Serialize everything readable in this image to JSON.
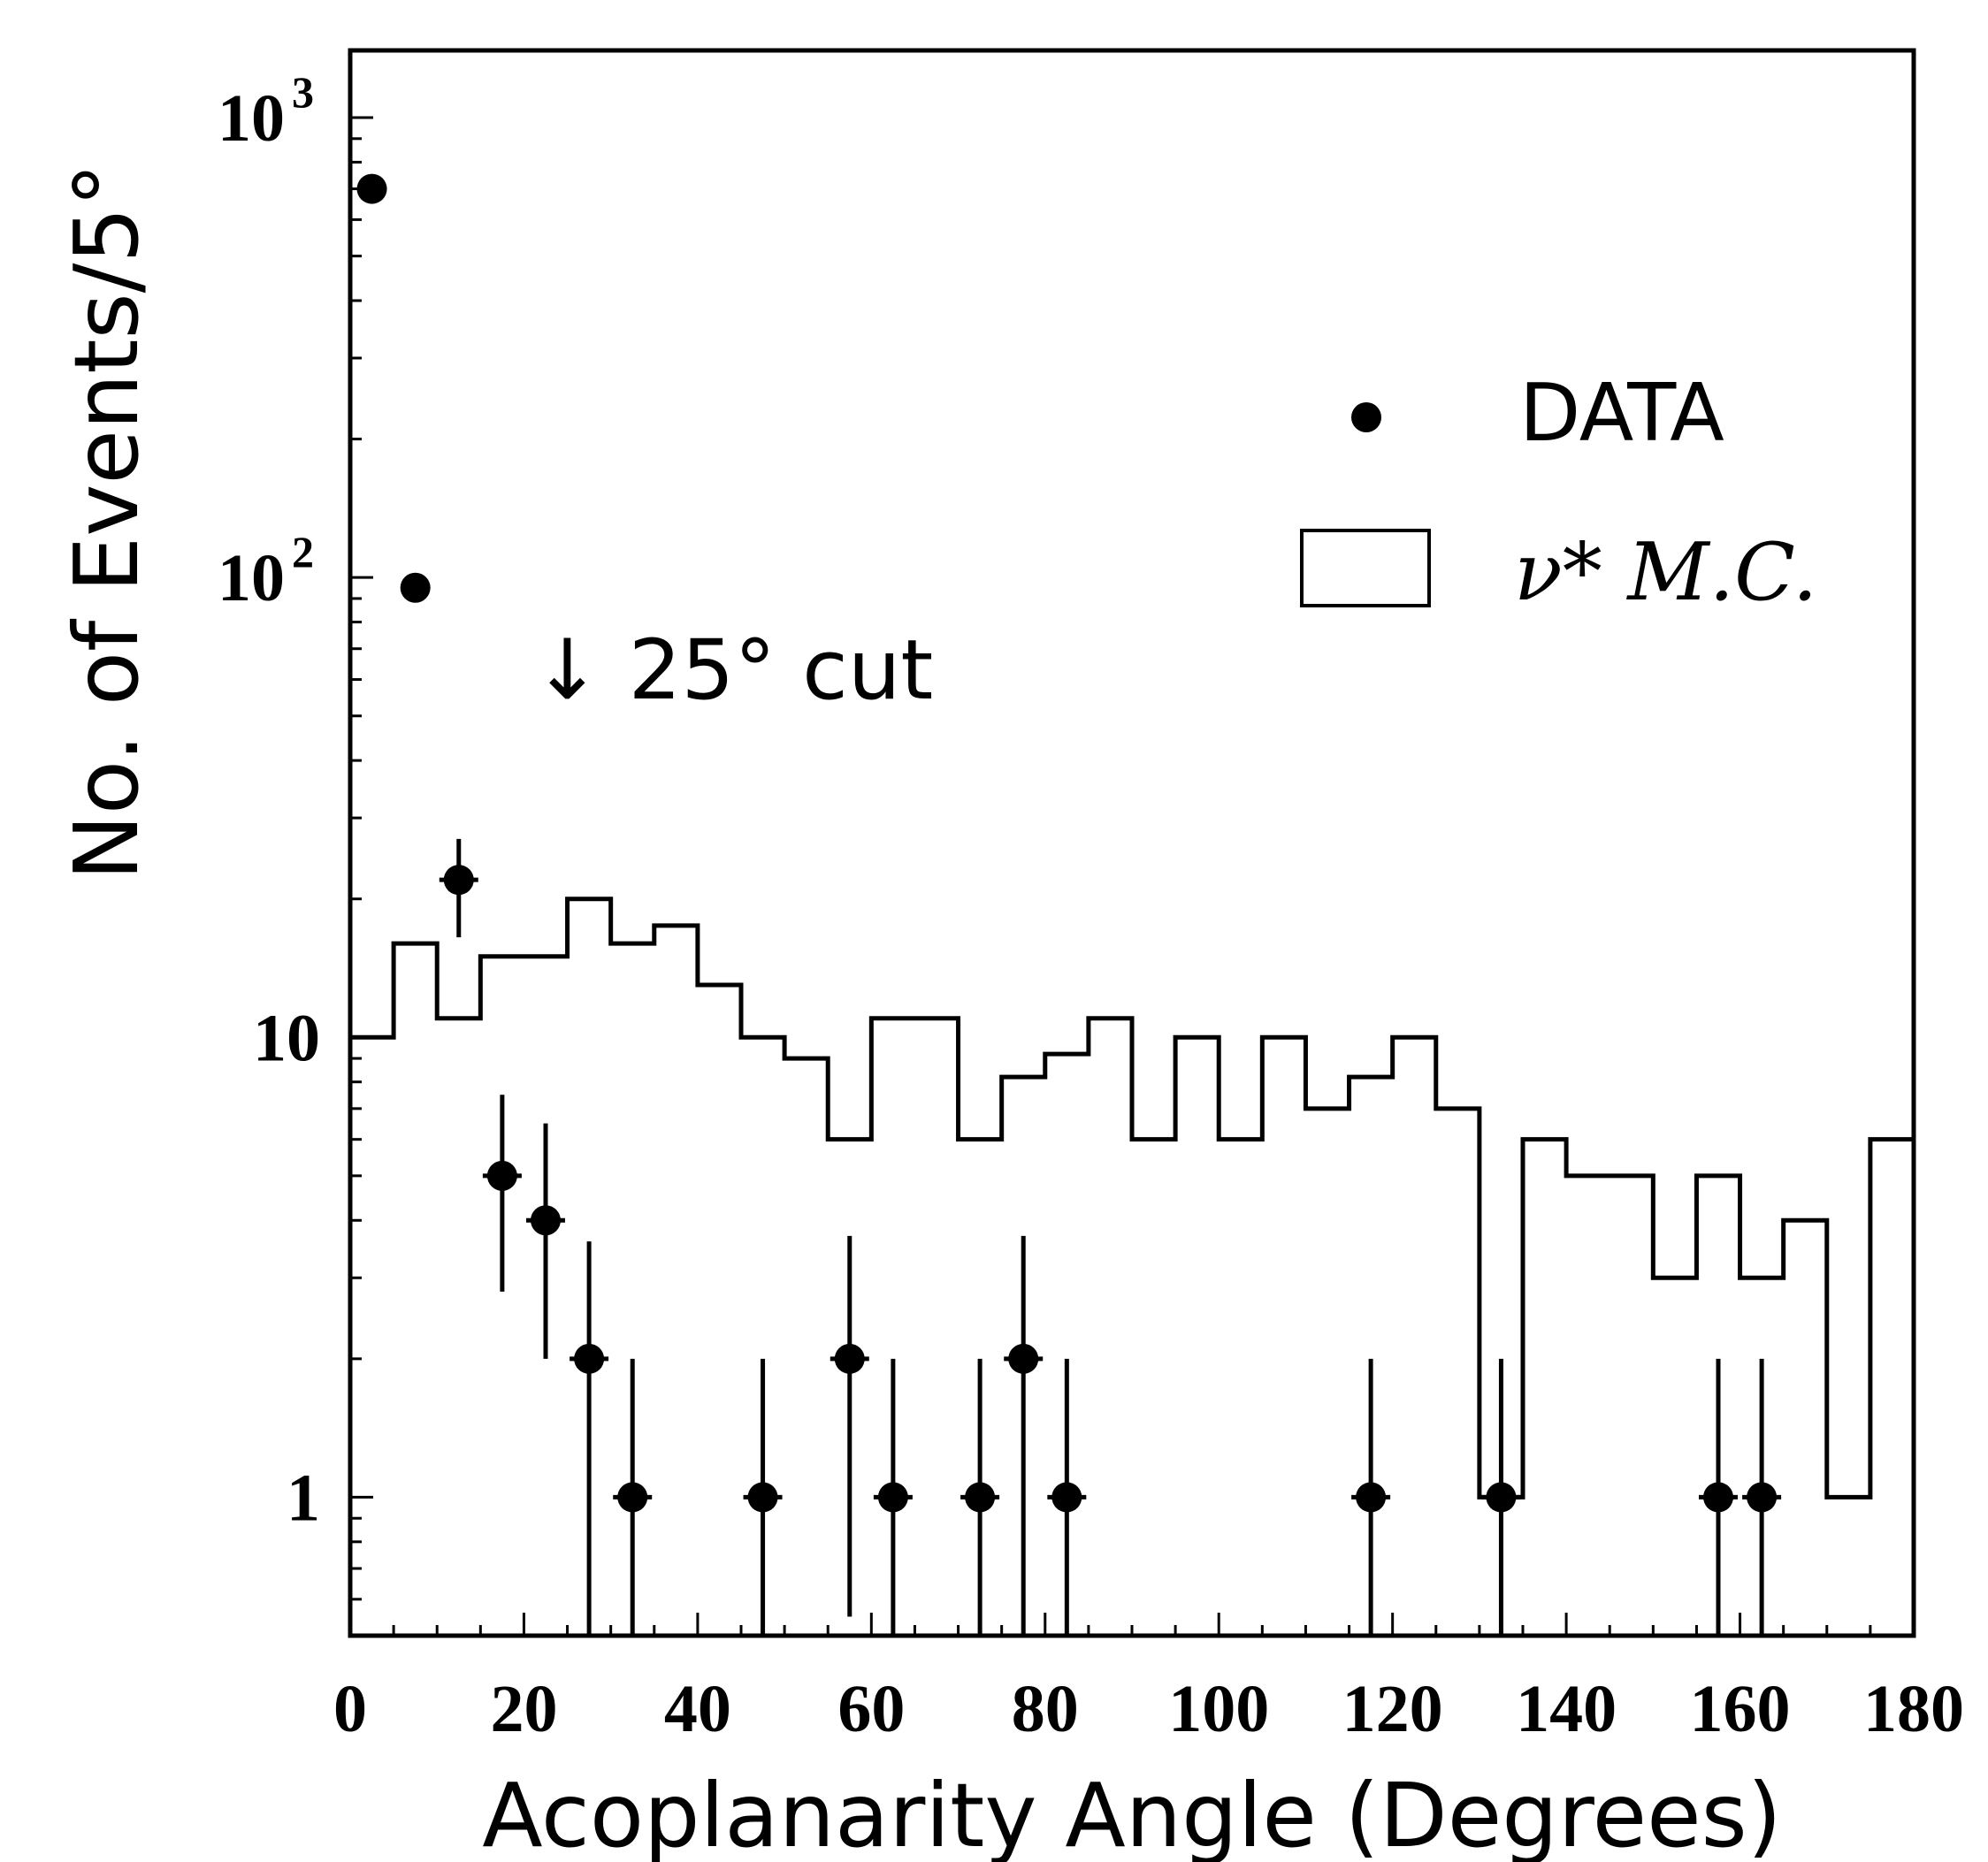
{
  "chart_data": {
    "type": "histogram",
    "xlabel": "Acoplanarity Angle (Degrees)",
    "ylabel": "No. of Events/5°",
    "xlim": [
      0,
      180
    ],
    "ylim": [
      0.5,
      1400
    ],
    "yscale": "log",
    "x_ticks": [
      0,
      20,
      40,
      60,
      80,
      100,
      120,
      140,
      160,
      180
    ],
    "y_ticks": [
      {
        "value": 1,
        "base": "1",
        "exp": ""
      },
      {
        "value": 10,
        "base": "10",
        "exp": ""
      },
      {
        "value": 100,
        "base": "10",
        "exp": "2"
      },
      {
        "value": 1000,
        "base": "10",
        "exp": "3"
      }
    ],
    "legend": {
      "position": "top-right",
      "items": [
        {
          "label": "DATA",
          "marker": "dot"
        },
        {
          "label": "ν* M.C.",
          "marker": "box"
        }
      ]
    },
    "annotation": {
      "text": "↓ 25° cut",
      "x": 25
    },
    "series": [
      {
        "name": "DATA",
        "kind": "points",
        "points": [
          {
            "x": 2.5,
            "y": 700
          },
          {
            "x": 7.5,
            "y": 95
          },
          {
            "x": 12.5,
            "y": 22,
            "yerr_low": 16.5,
            "yerr_high": 27
          },
          {
            "x": 17.5,
            "y": 5,
            "yerr_low": 2.8,
            "yerr_high": 7.5
          },
          {
            "x": 22.5,
            "y": 4,
            "yerr_low": 2,
            "yerr_high": 6.5
          },
          {
            "x": 27.5,
            "y": 2,
            "yerr_low": 0.5,
            "yerr_high": 3.6
          },
          {
            "x": 32.5,
            "y": 1,
            "yerr_low": 0.5,
            "yerr_high": 2
          },
          {
            "x": 47.5,
            "y": 1,
            "yerr_low": 0.5,
            "yerr_high": 2
          },
          {
            "x": 57.5,
            "y": 2,
            "yerr_low": 0.55,
            "yerr_high": 3.7
          },
          {
            "x": 62.5,
            "y": 1,
            "yerr_low": 0.5,
            "yerr_high": 2
          },
          {
            "x": 72.5,
            "y": 1,
            "yerr_low": 0.5,
            "yerr_high": 2
          },
          {
            "x": 77.5,
            "y": 2,
            "yerr_low": 0.5,
            "yerr_high": 3.7
          },
          {
            "x": 82.5,
            "y": 1,
            "yerr_low": 0.5,
            "yerr_high": 2
          },
          {
            "x": 117.5,
            "y": 1,
            "yerr_low": 0.5,
            "yerr_high": 2
          },
          {
            "x": 132.5,
            "y": 1,
            "yerr_low": 0.5,
            "yerr_high": 2
          },
          {
            "x": 157.5,
            "y": 1,
            "yerr_low": 0.5,
            "yerr_high": 2
          },
          {
            "x": 162.5,
            "y": 1,
            "yerr_low": 0.5,
            "yerr_high": 2
          }
        ]
      },
      {
        "name": "ν* M.C.",
        "kind": "step",
        "bin_edges": [
          0,
          5,
          10,
          15,
          20,
          25,
          30,
          35,
          40,
          45,
          50,
          55,
          60,
          65,
          70,
          75,
          80,
          85,
          90,
          95,
          100,
          105,
          110,
          115,
          120,
          125,
          130,
          135,
          140,
          145,
          150,
          155,
          160,
          165,
          170,
          175,
          180
        ],
        "values": [
          10,
          16,
          11,
          15,
          15,
          20,
          16,
          17.5,
          13,
          10,
          9,
          6,
          11,
          11,
          6,
          8.2,
          9.2,
          11,
          6,
          10,
          6,
          10,
          7,
          8.2,
          10,
          7,
          1,
          6,
          5,
          5,
          3,
          5,
          3,
          4,
          1,
          6
        ]
      }
    ]
  }
}
